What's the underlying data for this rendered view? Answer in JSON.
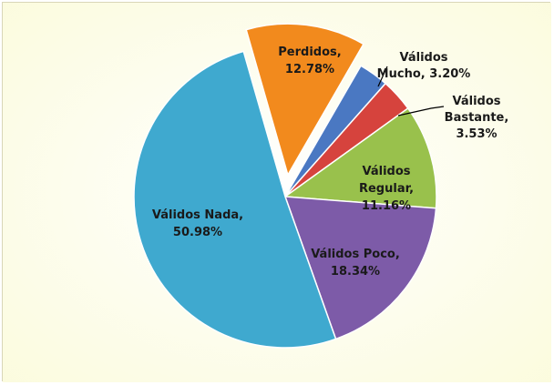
{
  "colors": {
    "background": "#fdfde7",
    "border": "#d9d6b8"
  },
  "chart_data": {
    "type": "pie",
    "title": "",
    "slices": [
      {
        "label": "Perdidos, 12.78%",
        "category": "Perdidos",
        "value": 12.78,
        "color": "#f28a1d",
        "exploded": true
      },
      {
        "label": "Válidos Mucho, 3.20%",
        "category": "Válidos Mucho",
        "value": 3.2,
        "color": "#4a78c2",
        "exploded": false
      },
      {
        "label": "Válidos Bastante, 3.53%",
        "category": "Válidos Bastante",
        "value": 3.53,
        "color": "#d6433d",
        "exploded": false
      },
      {
        "label": "Válidos Regular, 11.16%",
        "category": "Válidos Regular",
        "value": 11.16,
        "color": "#99c14c",
        "exploded": false
      },
      {
        "label": "Válidos Poco, 18.34%",
        "category": "Válidos Poco",
        "value": 18.34,
        "color": "#7d5ba8",
        "exploded": false
      },
      {
        "label": "Válidos Nada, 50.98%",
        "category": "Válidos Nada",
        "value": 50.98,
        "color": "#3fa9cf",
        "exploded": false
      }
    ],
    "label_lines": [
      [
        "Perdidos,",
        "12.78%"
      ],
      [
        "Válidos",
        "Mucho, 3.20%"
      ],
      [
        "Válidos",
        "Bastante,",
        "3.53%"
      ],
      [
        "Válidos",
        "Regular,",
        "11.16%"
      ],
      [
        "Válidos Poco,",
        "18.34%"
      ],
      [
        "Válidos Nada,",
        "50.98%"
      ]
    ]
  }
}
